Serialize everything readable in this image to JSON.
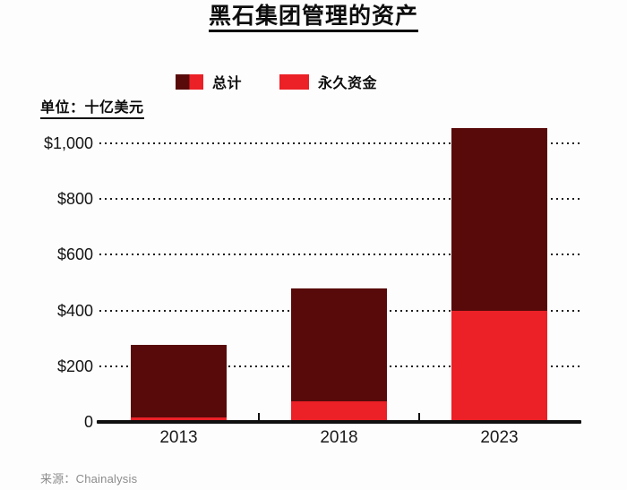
{
  "title": "黑石集团管理的资产",
  "unit_label": "单位：十亿美元",
  "source": "来源：Chainalysis",
  "legend": [
    {
      "label": "总计",
      "swatch": "two-tone"
    },
    {
      "label": "永久资金",
      "swatch": "red"
    }
  ],
  "colors": {
    "dark_red": "#580a0a",
    "red": "#ec2027",
    "axis": "#101010",
    "grid_dot": "#1b1b1b",
    "source_gray": "#8c8c8c"
  },
  "chart_data": {
    "type": "bar",
    "stacked": true,
    "title": "黑石集团管理的资产",
    "unit": "十亿美元 (billion USD)",
    "categories": [
      "2013",
      "2018",
      "2023"
    ],
    "series": [
      {
        "name": "总计",
        "role": "total",
        "values": [
          275,
          480,
          1055
        ],
        "color_key": "dark_red"
      },
      {
        "name": "永久资金",
        "role": "permanent",
        "values": [
          15,
          75,
          400
        ],
        "color_key": "red"
      }
    ],
    "yticks": [
      {
        "value": 0,
        "label": "0"
      },
      {
        "value": 200,
        "label": "$200"
      },
      {
        "value": 400,
        "label": "$400"
      },
      {
        "value": 600,
        "label": "$600"
      },
      {
        "value": 800,
        "label": "$800"
      },
      {
        "value": 1000,
        "label": "$1,000"
      }
    ],
    "ylim": [
      0,
      1070
    ],
    "grid": "dotted-horizontal",
    "legend_position": "top"
  }
}
